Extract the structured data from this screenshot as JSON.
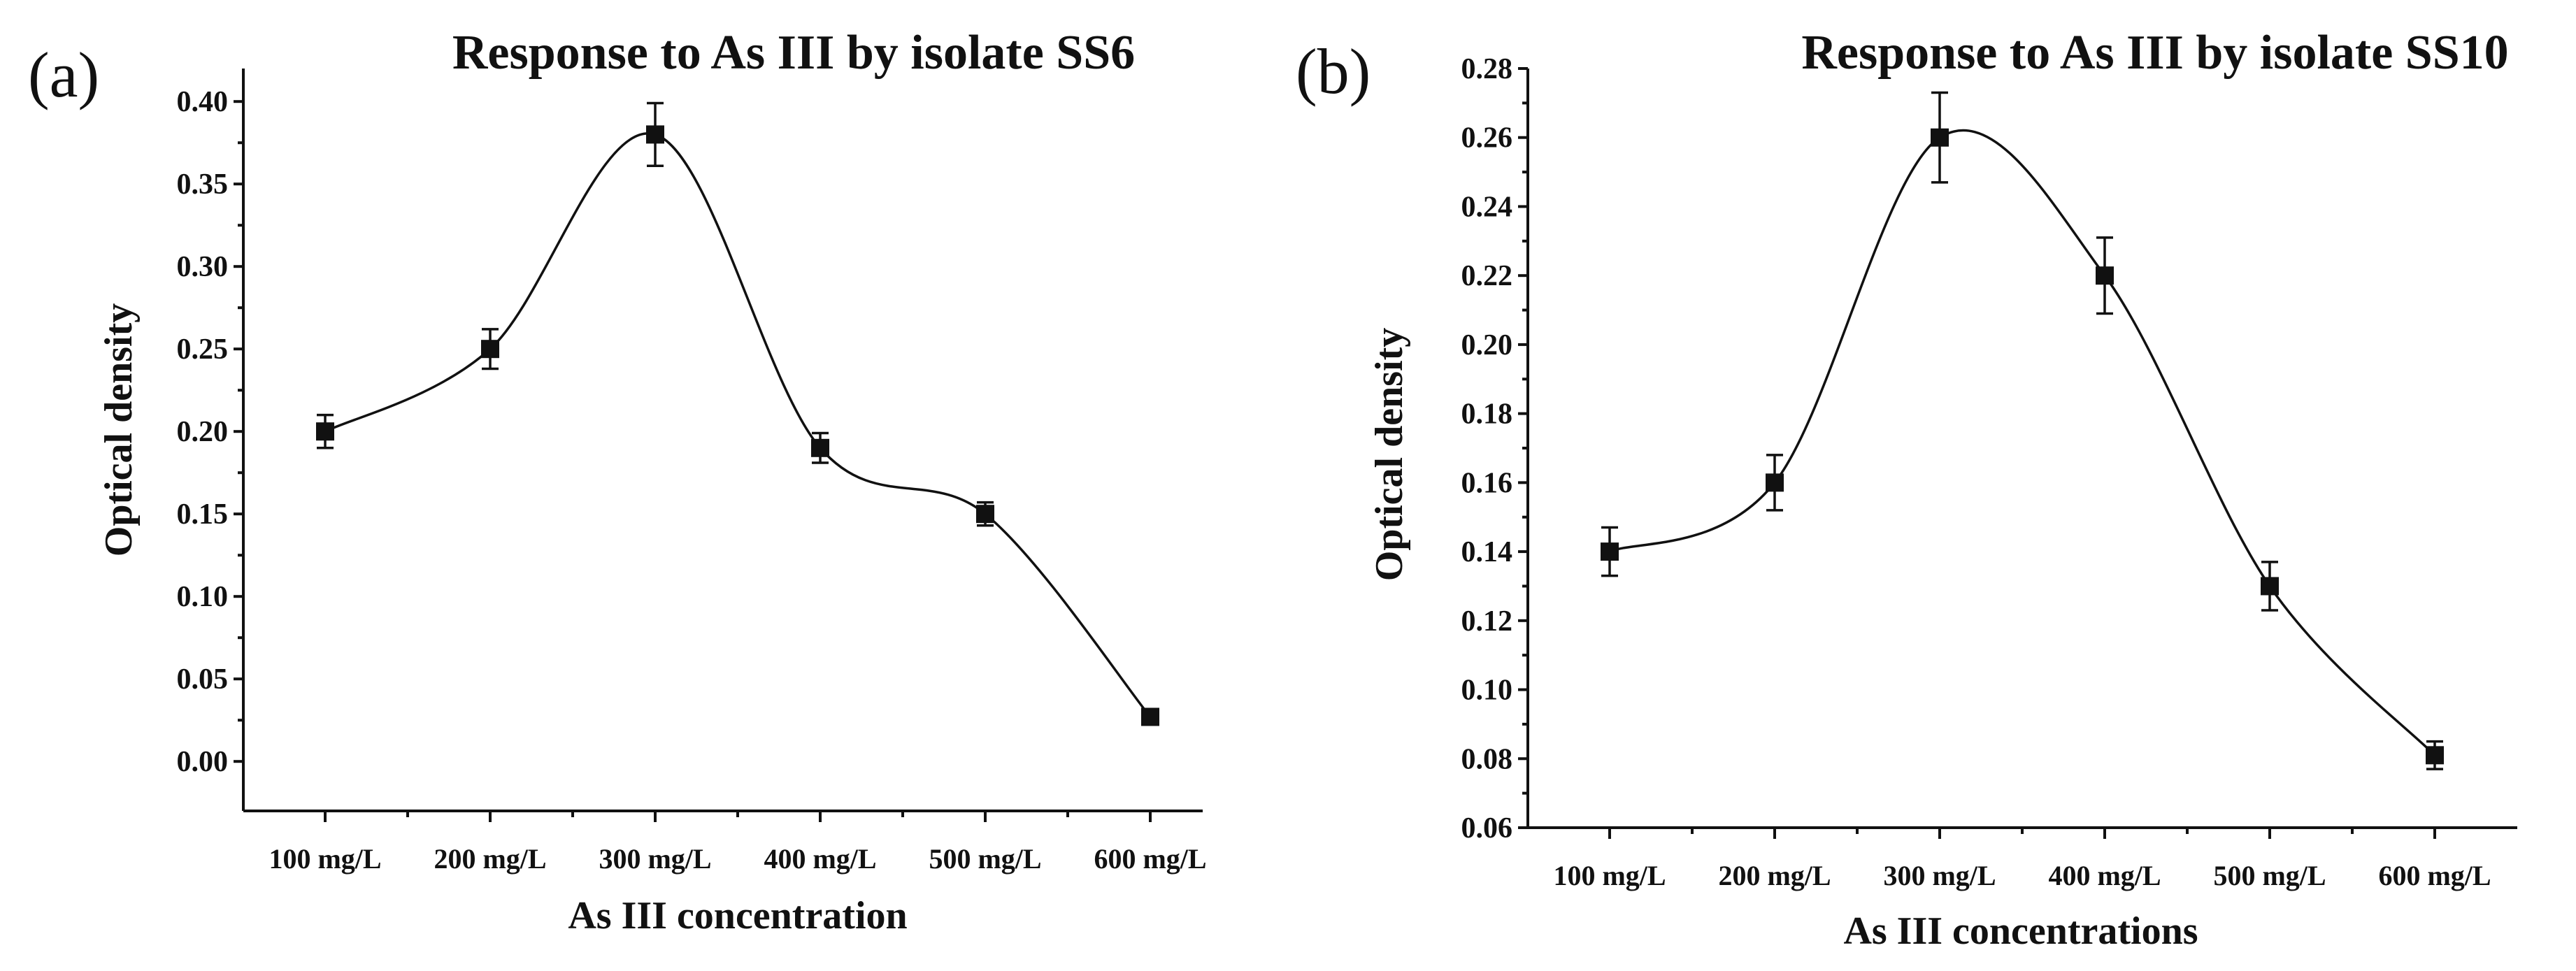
{
  "chart_data": [
    {
      "panel": "(a)",
      "type": "line",
      "title": "Response to As III by isolate SS6",
      "xlabel": "As III concentration",
      "ylabel": "Optical density",
      "categories": [
        "100 mg/L",
        "200 mg/L",
        "300 mg/L",
        "400 mg/L",
        "500 mg/L",
        "600 mg/L"
      ],
      "series": [
        {
          "name": "SS6",
          "values": [
            0.2,
            0.25,
            0.38,
            0.19,
            0.15,
            0.027
          ],
          "errors": [
            0.01,
            0.012,
            0.019,
            0.009,
            0.007,
            0.003
          ]
        }
      ],
      "ylim": [
        -0.03,
        0.42
      ],
      "yticks": [
        "0.00",
        "0.05",
        "0.10",
        "0.15",
        "0.20",
        "0.25",
        "0.30",
        "0.35",
        "0.40"
      ],
      "grid": false
    },
    {
      "panel": "(b)",
      "type": "line",
      "title": "Response to As III by isolate SS10",
      "xlabel": "As III concentrations",
      "ylabel": "Optical density",
      "categories": [
        "100 mg/L",
        "200 mg/L",
        "300 mg/L",
        "400 mg/L",
        "500 mg/L",
        "600 mg/L"
      ],
      "series": [
        {
          "name": "SS10",
          "values": [
            0.14,
            0.16,
            0.26,
            0.22,
            0.13,
            0.081
          ],
          "errors": [
            0.007,
            0.008,
            0.013,
            0.011,
            0.007,
            0.004
          ]
        }
      ],
      "ylim": [
        0.06,
        0.28
      ],
      "yticks": [
        "0.06",
        "0.08",
        "0.10",
        "0.12",
        "0.14",
        "0.16",
        "0.18",
        "0.20",
        "0.22",
        "0.24",
        "0.26",
        "0.28"
      ],
      "grid": false
    }
  ]
}
